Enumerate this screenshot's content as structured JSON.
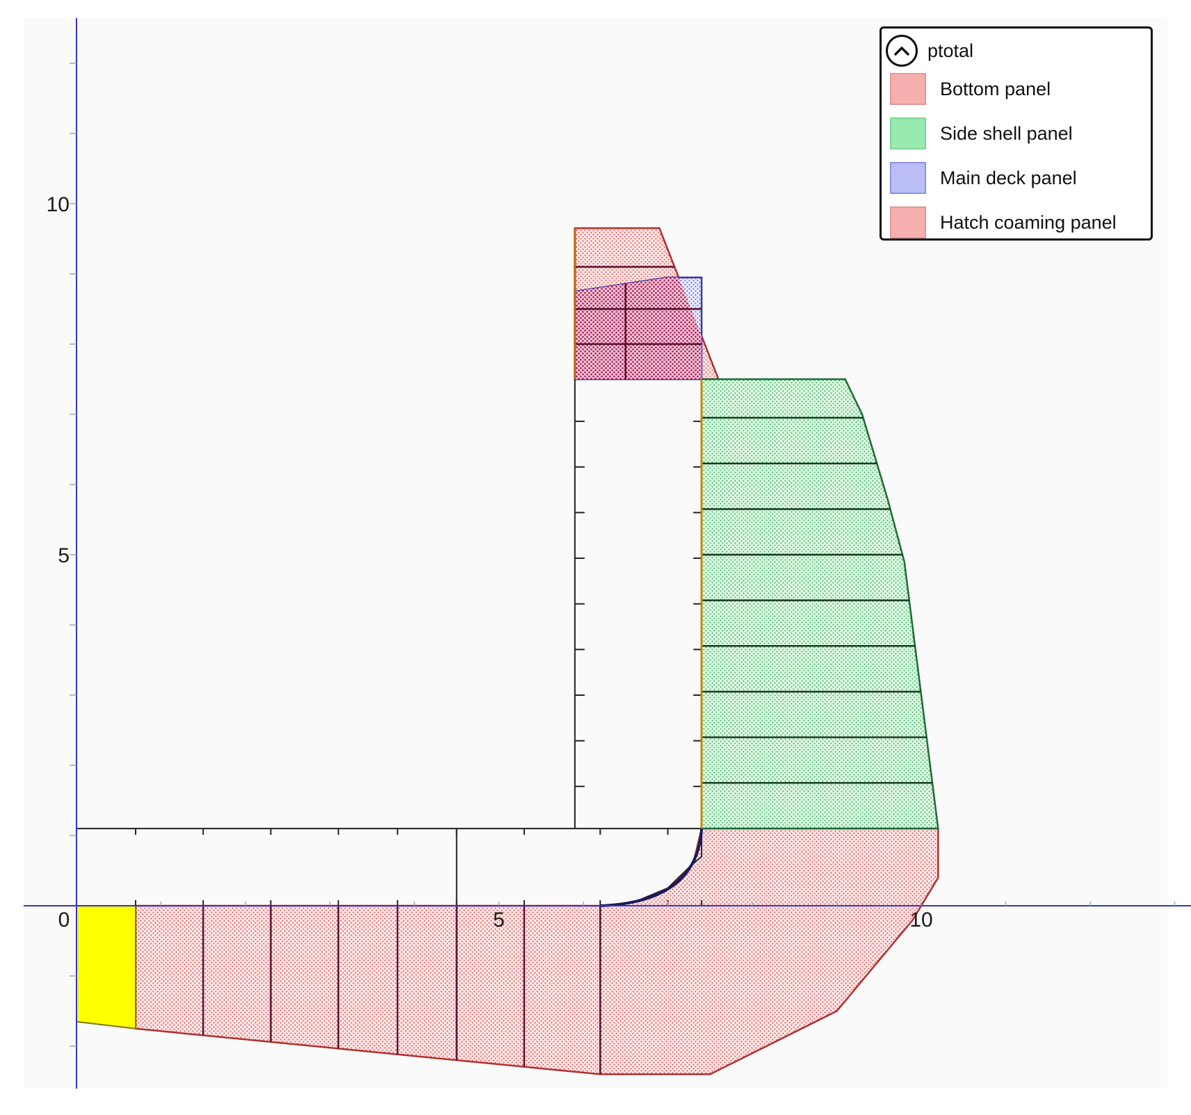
{
  "colors": {
    "bottom": "#f4a8a8",
    "side_shell": "#8fe3a8",
    "main_deck": "#b4b8f4",
    "hatch_coaming": "#f4a8a8",
    "keel": "#ffff00",
    "axis": "#3333cc"
  },
  "legend": {
    "title": "ptotal",
    "collapse_icon": "chevron-up-icon",
    "placement": "top-right",
    "items": [
      {
        "label": "Bottom panel",
        "color": "#f6a7a7",
        "border": "#e58a8a"
      },
      {
        "label": "Side shell panel",
        "color": "#8fe8a8",
        "border": "#6fcf8b"
      },
      {
        "label": "Main deck panel",
        "color": "#b4b8f6",
        "border": "#7e84e8"
      },
      {
        "label": "Hatch coaming panel",
        "color": "#f6a7a7",
        "border": "#e58a8a"
      }
    ]
  },
  "chart_data": {
    "type": "area",
    "title": "",
    "xlabel": "",
    "ylabel": "",
    "xlim": [
      0,
      15.5
    ],
    "ylim": [
      -2.8,
      12.7
    ],
    "grid": false,
    "x_tick_labels": [
      {
        "value": 0,
        "label": "0"
      },
      {
        "value": 5,
        "label": "5"
      },
      {
        "value": 10,
        "label": "10"
      }
    ],
    "y_tick_labels": [
      {
        "value": 5,
        "label": "5"
      },
      {
        "value": 10,
        "label": "10"
      }
    ],
    "hull_outline": [
      [
        0,
        0
      ],
      [
        6.2,
        0
      ],
      [
        7.4,
        0.7
      ],
      [
        7.4,
        7.5
      ],
      [
        5.9,
        7.5
      ],
      [
        5.9,
        9.65
      ],
      [
        6.9,
        9.65
      ],
      [
        7.6,
        7.5
      ],
      [
        9.1,
        7.5
      ],
      [
        9.3,
        7.0
      ],
      [
        9.6,
        5.8
      ],
      [
        9.8,
        4.9
      ],
      [
        10.2,
        1.1
      ],
      [
        10.2,
        0.4
      ],
      [
        9.9,
        -0.2
      ],
      [
        9.0,
        -1.5
      ],
      [
        7.5,
        -2.4
      ],
      [
        6.2,
        -2.4
      ],
      [
        0,
        -1.65
      ]
    ],
    "series": [
      {
        "name": "Bottom panel",
        "polygon": [
          [
            0.7,
            0
          ],
          [
            6.2,
            0
          ],
          [
            6.6,
            0.05
          ],
          [
            7.0,
            0.25
          ],
          [
            7.3,
            0.6
          ],
          [
            7.4,
            1.1
          ],
          [
            10.2,
            1.1
          ],
          [
            10.2,
            0.4
          ],
          [
            9.9,
            -0.2
          ],
          [
            9.0,
            -1.5
          ],
          [
            7.5,
            -2.4
          ],
          [
            6.2,
            -2.4
          ],
          [
            0.7,
            -1.75
          ]
        ],
        "divisions_x": [
          1.5,
          2.3,
          3.1,
          3.8,
          4.5,
          5.3,
          6.2
        ],
        "divisions_y": []
      },
      {
        "name": "Side shell panel",
        "polygon": [
          [
            7.4,
            1.1
          ],
          [
            7.4,
            7.5
          ],
          [
            9.1,
            7.5
          ],
          [
            9.3,
            7.0
          ],
          [
            9.6,
            5.8
          ],
          [
            9.8,
            4.9
          ],
          [
            10.2,
            1.1
          ]
        ],
        "divisions_x": [],
        "divisions_y": [
          1.75,
          2.4,
          3.05,
          3.7,
          4.35,
          5.0,
          5.65,
          6.3,
          6.95
        ]
      },
      {
        "name": "Main deck panel",
        "polygon": [
          [
            5.9,
            7.5
          ],
          [
            5.9,
            8.75
          ],
          [
            7.0,
            8.95
          ],
          [
            7.4,
            8.95
          ],
          [
            7.4,
            7.5
          ]
        ],
        "divisions_x": [
          6.5
        ],
        "divisions_y": [
          8.0,
          8.5
        ]
      },
      {
        "name": "Hatch coaming panel",
        "polygon": [
          [
            5.9,
            7.5
          ],
          [
            5.9,
            9.65
          ],
          [
            6.9,
            9.65
          ],
          [
            7.6,
            7.5
          ]
        ],
        "divisions_x": [],
        "divisions_y": [
          9.1
        ]
      }
    ],
    "keel_block": {
      "polygon": [
        [
          0,
          0
        ],
        [
          0.7,
          0
        ],
        [
          0.7,
          -1.75
        ],
        [
          0,
          -1.65
        ]
      ],
      "color": "#ffff00"
    },
    "inner_structure": {
      "double_bottom": [
        [
          0,
          0
        ],
        [
          0,
          1.1
        ],
        [
          7.4,
          1.1
        ],
        [
          7.4,
          0.7
        ],
        [
          7.3,
          0.6
        ],
        [
          7.0,
          0.25
        ],
        [
          6.6,
          0.05
        ],
        [
          6.2,
          0
        ]
      ],
      "girder_x": 4.5,
      "floor_ticks_x": [
        0.7,
        1.5,
        2.3,
        3.1,
        3.8,
        4.5,
        5.3,
        6.2,
        7.0,
        7.4
      ],
      "inner_side_x": 5.9,
      "inner_side_ticks_y": [
        1.7,
        2.35,
        3.0,
        3.65,
        4.3,
        4.95,
        5.6,
        6.25,
        6.9
      ]
    }
  }
}
